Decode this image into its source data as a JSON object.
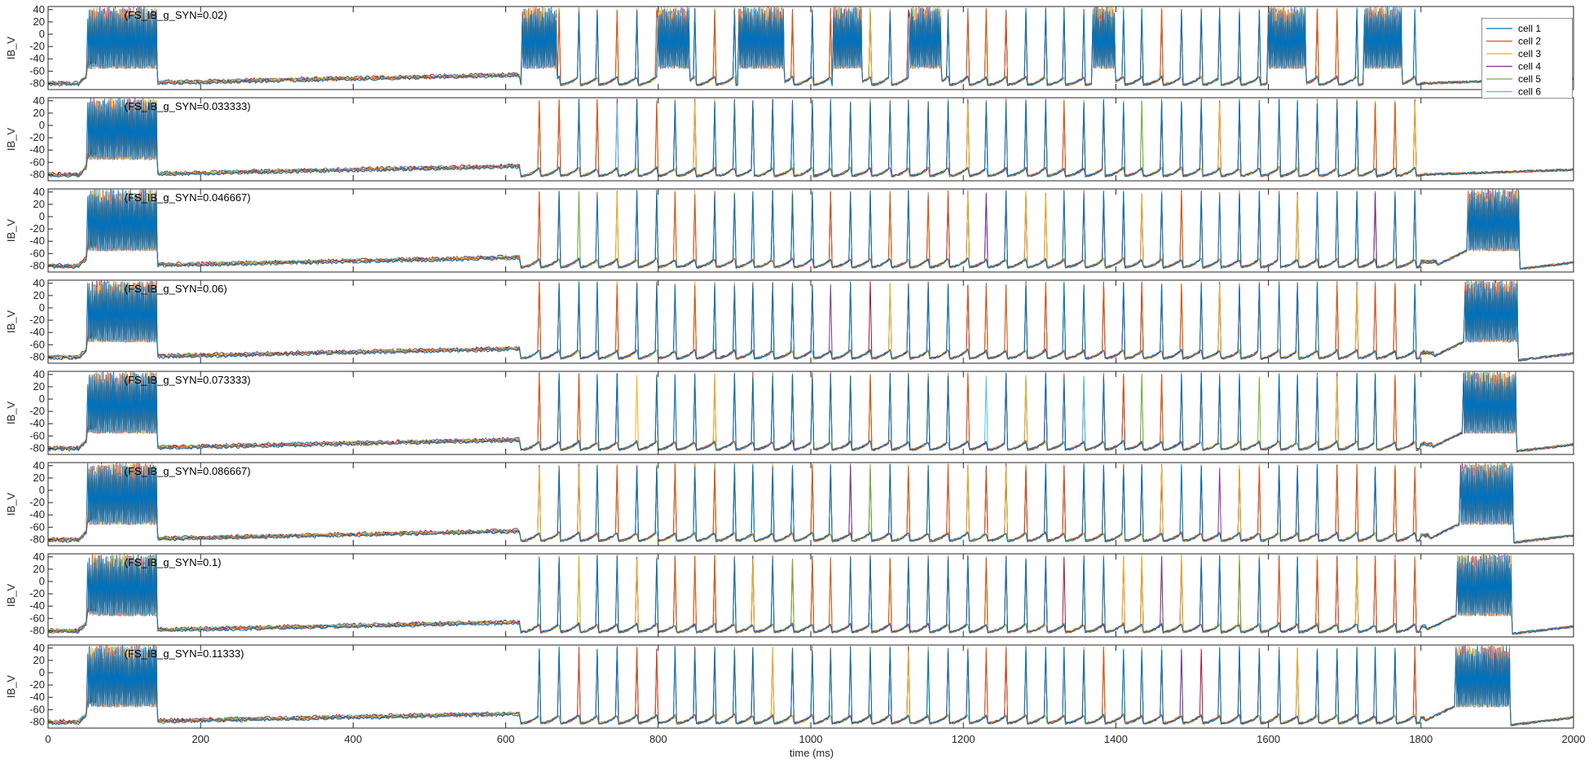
{
  "chart_data": {
    "type": "line",
    "xlabel": "time (ms)",
    "ylabel": "IB_V",
    "xlim": [
      0,
      2000
    ],
    "ylim": [
      -90,
      45
    ],
    "x_ticks": [
      "0",
      "200",
      "400",
      "600",
      "800",
      "1000",
      "1200",
      "1400",
      "1600",
      "1800",
      "2000"
    ],
    "y_ticks": [
      "40",
      "20",
      "0",
      "-20",
      "-40",
      "-60",
      "-80"
    ],
    "grid": false,
    "legend": {
      "placement": "top-right",
      "entries": [
        "cell 1",
        "cell 2",
        "cell 3",
        "cell 4",
        "cell 5",
        "cell 6"
      ]
    },
    "series_colors": [
      "#0072bd",
      "#d95319",
      "#edb120",
      "#7e2f8e",
      "#77ac30",
      "#4dbeee",
      "#a2142f"
    ],
    "panels": [
      {
        "title": "(FS_IB_g_SYN=0.02)",
        "late_burst": null,
        "mid_bursts": [
          [
            622,
            668
          ],
          [
            800,
            842
          ],
          [
            905,
            965
          ],
          [
            1030,
            1068
          ],
          [
            1130,
            1172
          ],
          [
            1370,
            1400
          ],
          [
            1600,
            1650
          ],
          [
            1725,
            1775
          ]
        ]
      },
      {
        "title": "(FS_IB_g_SYN=0.033333)",
        "late_burst": null,
        "mid_bursts": []
      },
      {
        "title": "(FS_IB_g_SYN=0.046667)",
        "late_burst": [
          1862,
          1930
        ],
        "mid_bursts": []
      },
      {
        "title": "(FS_IB_g_SYN=0.06)",
        "late_burst": [
          1858,
          1928
        ],
        "mid_bursts": []
      },
      {
        "title": "(FS_IB_g_SYN=0.073333)",
        "late_burst": [
          1855,
          1925
        ],
        "mid_bursts": []
      },
      {
        "title": "(FS_IB_g_SYN=0.086667)",
        "late_burst": [
          1852,
          1922
        ],
        "mid_bursts": []
      },
      {
        "title": "(FS_IB_g_SYN=0.1)",
        "late_burst": [
          1848,
          1920
        ],
        "mid_bursts": []
      },
      {
        "title": "(FS_IB_g_SYN=0.11333)",
        "late_burst": [
          1845,
          1918
        ],
        "mid_bursts": []
      }
    ],
    "early_burst_ms": [
      52,
      143
    ],
    "spike_period_ms": 25.5,
    "spike_train_ms": [
      620,
      1800
    ]
  }
}
